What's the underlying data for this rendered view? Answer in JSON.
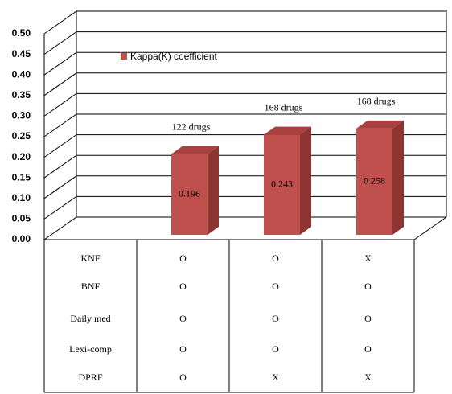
{
  "chart_data": {
    "type": "bar3d",
    "categories": [
      null,
      null,
      null
    ],
    "series": [
      {
        "name": "Kappa(K) coefficient",
        "color": "#c0504d",
        "values": [
          0.196,
          0.243,
          0.258
        ],
        "value_labels": [
          "0.196",
          "0.243",
          "0.258"
        ]
      }
    ],
    "annotations": [
      "122 drugs",
      "168 drugs",
      "168 drugs"
    ],
    "ylim": [
      0,
      0.5
    ],
    "yticks": [
      {
        "value": 0,
        "label": "0.00"
      },
      {
        "value": 0.05,
        "label": "0.05"
      },
      {
        "value": 0.1,
        "label": "0.10"
      },
      {
        "value": 0.15,
        "label": "0.15"
      },
      {
        "value": 0.2,
        "label": "0.20"
      },
      {
        "value": 0.25,
        "label": "0.25"
      },
      {
        "value": 0.3,
        "label": "0.30"
      },
      {
        "value": 0.35,
        "label": "0.35"
      },
      {
        "value": 0.4,
        "label": "0.40"
      },
      {
        "value": 0.45,
        "label": "0.45"
      },
      {
        "value": 0.5,
        "label": "0.50"
      }
    ],
    "grid": true,
    "legend": "top-left"
  },
  "table": {
    "rows": [
      [
        "KNF",
        "O",
        "O",
        "X"
      ],
      [
        "BNF",
        "O",
        "O",
        "O"
      ],
      [
        "Daily med",
        "O",
        "O",
        "O"
      ],
      [
        "Lexi-comp",
        "O",
        "O",
        "O"
      ],
      [
        "DPRF",
        "O",
        "X",
        "X"
      ]
    ]
  }
}
